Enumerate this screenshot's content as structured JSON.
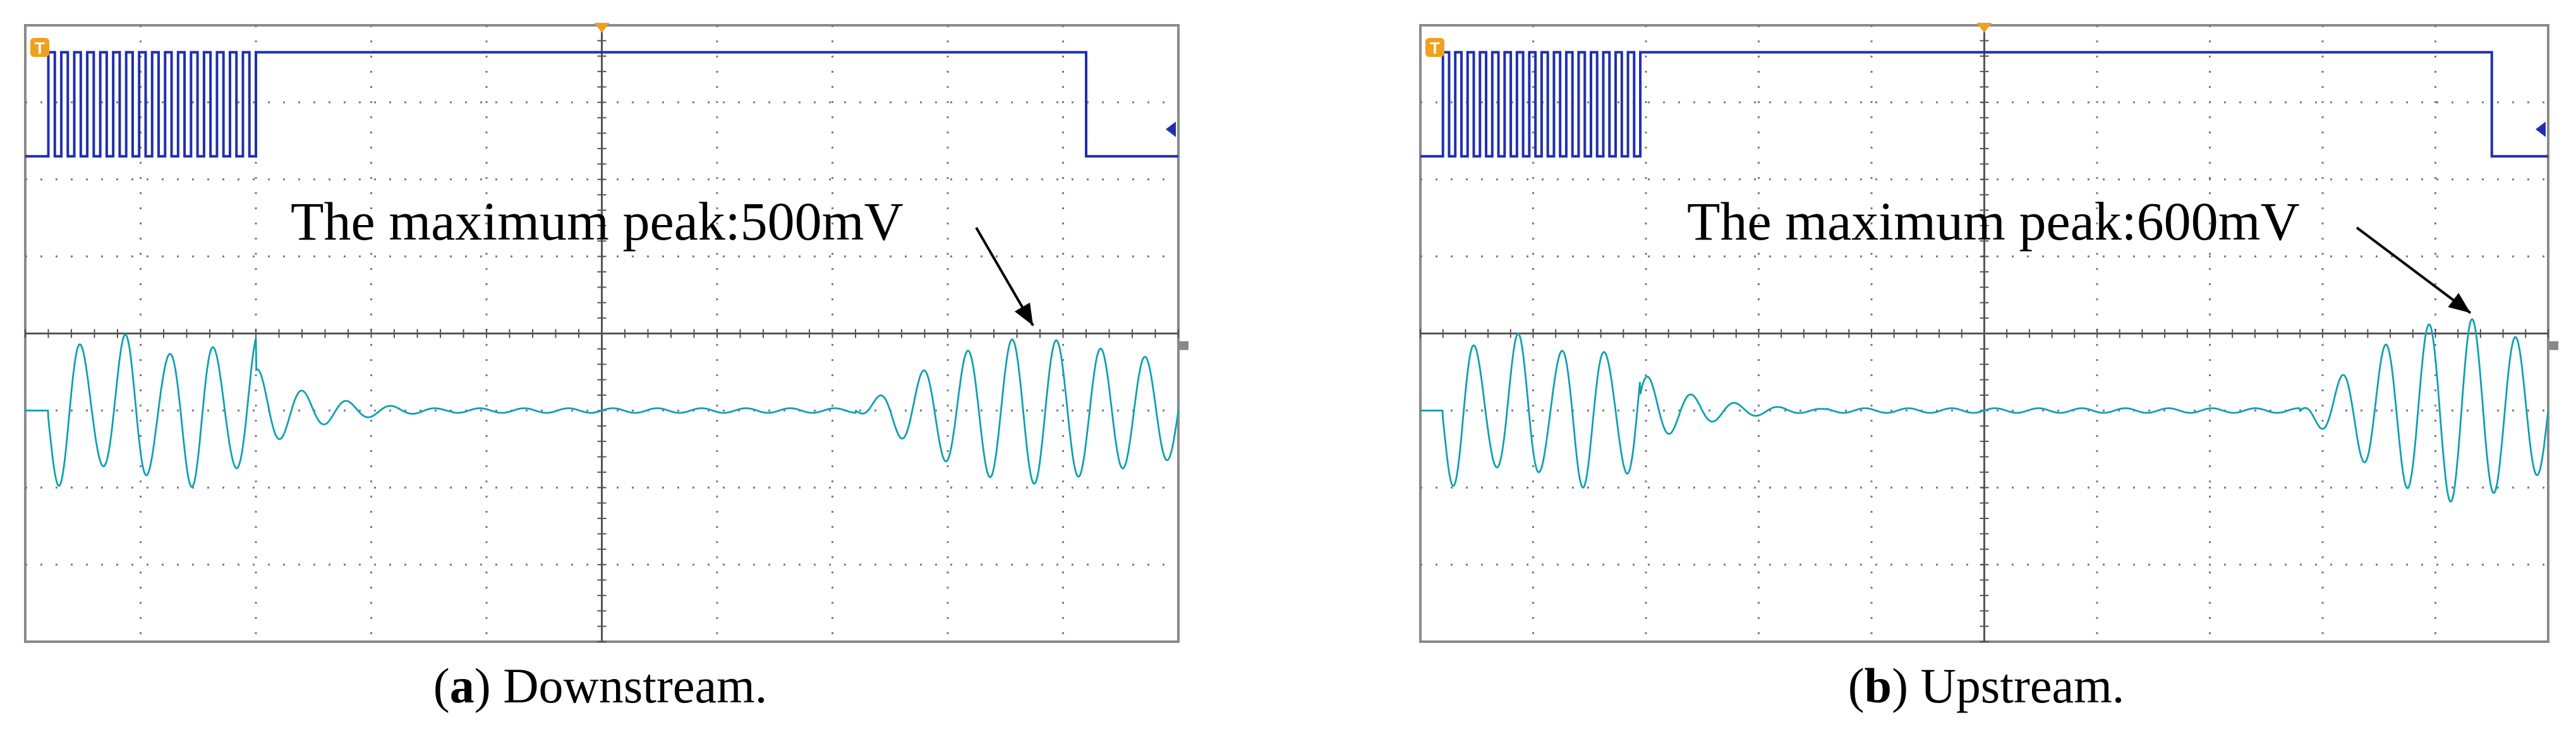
{
  "panels": [
    {
      "id": "a",
      "caption_letter": "a",
      "caption_text": "Downstream.",
      "annotation": "The maximum peak:500mV",
      "trigger_marker": "T"
    },
    {
      "id": "b",
      "caption_letter": "b",
      "caption_text": "Upstream.",
      "annotation": "The maximum peak:600mV",
      "trigger_marker": "T"
    }
  ],
  "colors": {
    "digital_trace": "#1f2fb0",
    "analog_trace": "#22b8c8",
    "grid": "#7a7a7a",
    "frame": "#8a8a8a",
    "trigger": "#f0a020"
  },
  "chart_data": [
    {
      "type": "line",
      "title": "",
      "xlabel": "",
      "ylabel": "",
      "grid": true,
      "divisions": {
        "x": 10,
        "y": 8
      },
      "xlim": [
        0,
        10
      ],
      "series": [
        {
          "channel": "digital",
          "description": "burst of square pulses then high level, drops low near right edge",
          "burst": {
            "start_div": 0.2,
            "end_div": 2.0,
            "pulses": 16
          },
          "high_until_div": 9.2,
          "low_level_div": 1.7,
          "high_level_div": 0.35
        },
        {
          "channel": "analog",
          "description": "decaying sinusoid, flat, then growing sinusoid",
          "segments": [
            {
              "start_div": 0.2,
              "end_div": 2.0,
              "amplitude_div": 1.0,
              "kind": "burst"
            },
            {
              "start_div": 2.0,
              "end_div": 3.7,
              "amplitude_div": 0.55,
              "kind": "decay"
            },
            {
              "start_div": 3.7,
              "end_div": 7.2,
              "amplitude_div": 0.03,
              "kind": "flat"
            },
            {
              "start_div": 7.2,
              "end_div": 10.0,
              "amplitude_div": 0.95,
              "kind": "swell",
              "peak_div": 8.8
            }
          ],
          "center_div": 5.0,
          "max_peak_mV": 500
        }
      ]
    },
    {
      "type": "line",
      "title": "",
      "xlabel": "",
      "ylabel": "",
      "grid": true,
      "divisions": {
        "x": 10,
        "y": 8
      },
      "xlim": [
        0,
        10
      ],
      "series": [
        {
          "channel": "digital",
          "description": "burst of square pulses then high level, drops low near right edge",
          "burst": {
            "start_div": 0.2,
            "end_div": 1.95,
            "pulses": 16
          },
          "high_until_div": 9.5,
          "low_level_div": 1.7,
          "high_level_div": 0.35
        },
        {
          "channel": "analog",
          "description": "decaying sinusoid, flat, then growing sinusoid",
          "segments": [
            {
              "start_div": 0.2,
              "end_div": 1.95,
              "amplitude_div": 1.0,
              "kind": "burst"
            },
            {
              "start_div": 1.95,
              "end_div": 3.6,
              "amplitude_div": 0.5,
              "kind": "decay"
            },
            {
              "start_div": 3.6,
              "end_div": 7.8,
              "amplitude_div": 0.03,
              "kind": "flat"
            },
            {
              "start_div": 7.8,
              "end_div": 10.0,
              "amplitude_div": 1.2,
              "kind": "swell",
              "peak_div": 9.3
            }
          ],
          "center_div": 5.0,
          "max_peak_mV": 600
        }
      ]
    }
  ]
}
